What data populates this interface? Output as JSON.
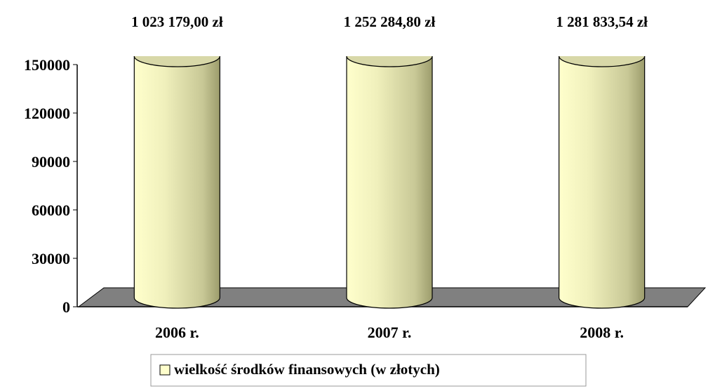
{
  "chart_data": {
    "type": "cylinder",
    "categories": [
      "2006 r.",
      "2007 r.",
      "2008 r."
    ],
    "series": [
      {
        "name": "wielkość środków finansowych (w złotych)",
        "color": "#ffffcc",
        "values": [
          1023179.0,
          1252284.8,
          1281833.54
        ],
        "value_labels": [
          "1 023 179,00 zł",
          "1 252 284,80 zł",
          "1 281 833,54 zł"
        ]
      }
    ],
    "ylim": [
      0,
      150000
    ],
    "yticks": [
      0,
      30000,
      60000,
      90000,
      120000,
      150000
    ]
  }
}
